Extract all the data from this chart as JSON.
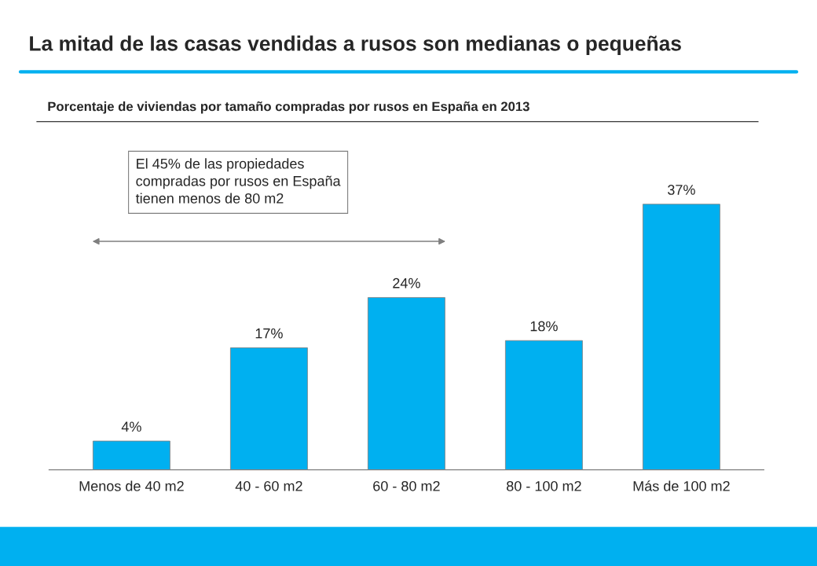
{
  "chart_data": {
    "type": "bar",
    "title": "La mitad de las casas vendidas a rusos son medianas o pequeñas",
    "subtitle": "Porcentaje de viviendas por tamaño compradas por rusos en España en 2013",
    "categories": [
      "Menos de 40 m2",
      "40 - 60 m2",
      "60 - 80 m2",
      "80 - 100 m2",
      "Más de 100 m2"
    ],
    "values": [
      4,
      17,
      24,
      18,
      37
    ],
    "value_labels": [
      "4%",
      "17%",
      "24%",
      "18%",
      "37%"
    ],
    "color": "#00b0f0",
    "grid": false,
    "legend": false,
    "annotations": [
      "El 45% de las propiedades\ncompradas por rusos en España\ntienen menos de 80 m2"
    ]
  }
}
